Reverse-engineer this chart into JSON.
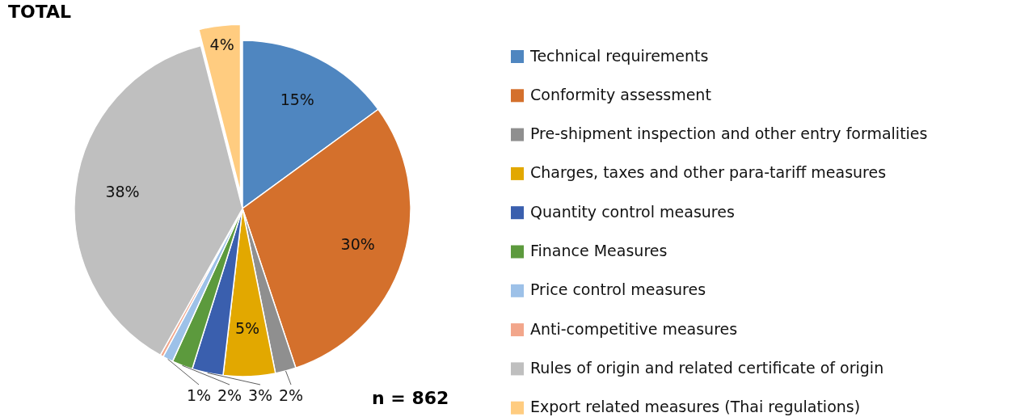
{
  "chart_data": {
    "type": "pie",
    "title": "TOTAL",
    "categories": [
      "Technical requirements",
      "Conformity assessment",
      "Pre-shipment inspection and other entry formalities",
      "Charges, taxes and other para-tariff measures",
      "Quantity control measures",
      "Finance Measures",
      "Price control measures",
      "Anti-competitive measures",
      "Rules of origin and related certificate of origin",
      "Export related measures (Thai regulations)"
    ],
    "values": [
      15,
      30,
      2,
      5,
      3,
      2,
      1,
      0.3,
      38,
      4
    ],
    "value_labels": [
      "15%",
      "30%",
      "2%",
      "5%",
      "3%",
      "2%",
      "1%",
      null,
      "38%",
      "4%"
    ],
    "colors": [
      "#4f86c0",
      "#d4702c",
      "#8f8f8f",
      "#e2a800",
      "#3a5fae",
      "#5c9a3d",
      "#9dc1e8",
      "#f2a68b",
      "#bfbfbf",
      "#ffcc80"
    ],
    "legend": "right",
    "annotations": [
      "n = 862"
    ]
  }
}
